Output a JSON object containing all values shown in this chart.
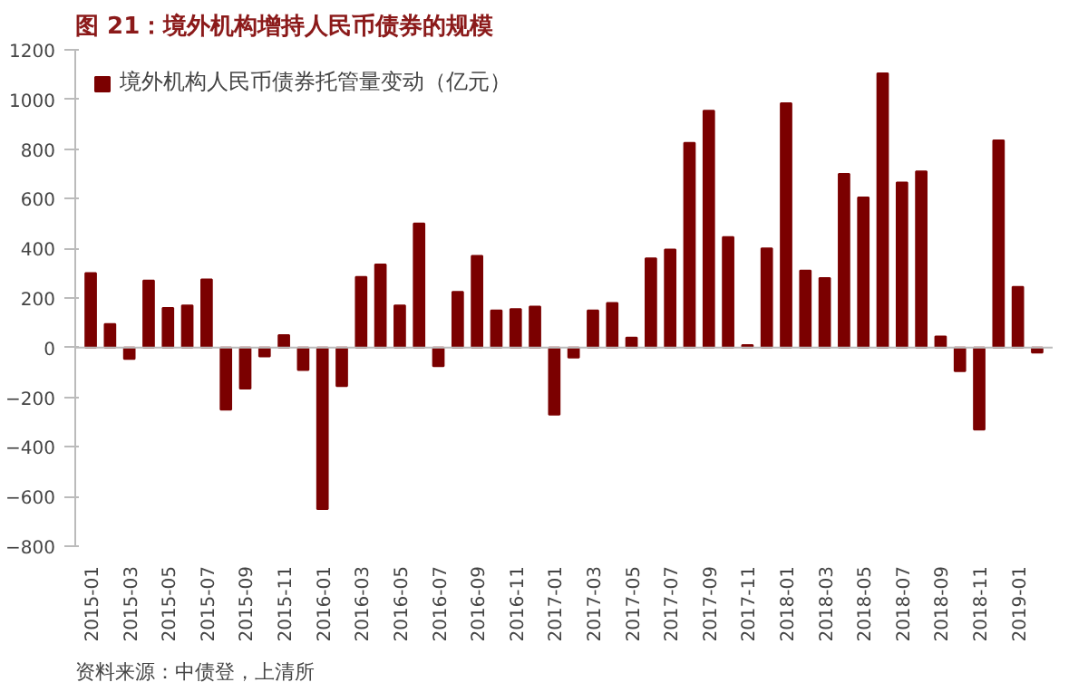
{
  "chart_data": {
    "type": "bar",
    "title": "图 21：境外机构增持人民币债券的规模",
    "categories": [
      "2015-01",
      null,
      "2015-03",
      null,
      "2015-05",
      null,
      "2015-07",
      null,
      "2015-09",
      null,
      "2015-11",
      null,
      "2016-01",
      null,
      "2016-03",
      null,
      "2016-05",
      null,
      "2016-07",
      null,
      "2016-09",
      null,
      "2016-11",
      null,
      "2017-01",
      null,
      "2017-03",
      null,
      "2017-05",
      null,
      "2017-07",
      null,
      "2017-09",
      null,
      "2017-11",
      null,
      "2018-01",
      null,
      "2018-03",
      null,
      "2018-05",
      null,
      "2018-07",
      null,
      "2018-09",
      null,
      "2018-11",
      null,
      "2019-01",
      null
    ],
    "series": [
      {
        "name": "境外机构人民币债券托管量变动（亿元）",
        "color": "#7b0000",
        "values": [
          300,
          95,
          -45,
          270,
          160,
          170,
          275,
          -250,
          -165,
          -35,
          50,
          -90,
          -650,
          -155,
          285,
          335,
          170,
          500,
          -75,
          225,
          370,
          150,
          155,
          165,
          -270,
          -40,
          150,
          180,
          40,
          360,
          395,
          825,
          955,
          445,
          10,
          400,
          985,
          310,
          280,
          700,
          605,
          1105,
          665,
          710,
          45,
          -95,
          -330,
          835,
          245,
          -20
        ]
      }
    ],
    "ylim": [
      -800,
      1200
    ],
    "yticks": [
      -800,
      -600,
      -400,
      -200,
      0,
      200,
      400,
      600,
      800,
      1000,
      1200
    ],
    "legend": "top left",
    "annotations": [
      "资料来源：中债登，上清所"
    ]
  }
}
